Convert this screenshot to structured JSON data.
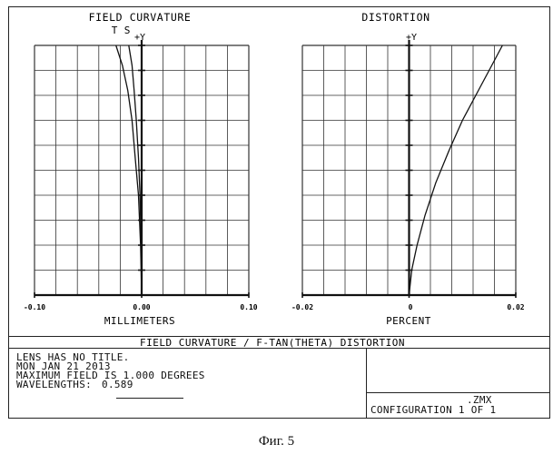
{
  "charts": [
    {
      "title": "FIELD CURVATURE",
      "xlabel": "MILLIMETERS",
      "yaxis_label": "+Y",
      "ticks": [
        "-0.10",
        "0.00",
        "0.10"
      ],
      "series_labels": [
        "T",
        "S"
      ]
    },
    {
      "title": "DISTORTION",
      "xlabel": "PERCENT",
      "yaxis_label": "+Y",
      "ticks": [
        "-0.02",
        "0",
        "0.02"
      ]
    }
  ],
  "chart_data": [
    {
      "type": "line",
      "title": "FIELD CURVATURE",
      "xlabel": "MILLIMETERS",
      "ylabel": "+Y",
      "xlim": [
        -0.1,
        0.1
      ],
      "ylim": [
        0,
        1.0
      ],
      "grid": true,
      "series": [
        {
          "name": "T",
          "x": [
            0.0,
            -0.001,
            -0.003,
            -0.006,
            -0.009,
            -0.013,
            -0.018,
            -0.024
          ],
          "y": [
            0.0,
            0.2,
            0.4,
            0.55,
            0.7,
            0.82,
            0.92,
            1.0
          ]
        },
        {
          "name": "S",
          "x": [
            0.0,
            -0.0005,
            -0.0015,
            -0.003,
            -0.005,
            -0.007,
            -0.009,
            -0.012
          ],
          "y": [
            0.0,
            0.2,
            0.4,
            0.55,
            0.7,
            0.82,
            0.92,
            1.0
          ]
        }
      ],
      "extra_line": {
        "x": [
          0.0,
          0.0
        ],
        "y": [
          0.35,
          1.0
        ]
      }
    },
    {
      "type": "line",
      "title": "DISTORTION",
      "xlabel": "PERCENT",
      "ylabel": "+Y",
      "xlim": [
        -0.02,
        0.02
      ],
      "ylim": [
        0,
        1.0
      ],
      "grid": true,
      "series": [
        {
          "x": [
            0.0,
            0.0005,
            0.0015,
            0.003,
            0.005,
            0.0075,
            0.01,
            0.013,
            0.0155,
            0.0175
          ],
          "y": [
            0.0,
            0.1,
            0.2,
            0.32,
            0.45,
            0.58,
            0.7,
            0.82,
            0.92,
            1.0
          ]
        }
      ]
    }
  ],
  "panel": {
    "header": "FIELD CURVATURE / F-TAN(THETA) DISTORTION",
    "lines": [
      "LENS HAS NO TITLE.",
      "MON JAN 21 2013",
      "MAXIMUM FIELD IS 1.000 DEGREES"
    ],
    "wavelengths_label": "WAVELENGTHS:",
    "wavelengths_value": "0.589",
    "file": ".ZMX",
    "configuration": "CONFIGURATION 1 OF 1"
  },
  "caption": "Фиг. 5"
}
